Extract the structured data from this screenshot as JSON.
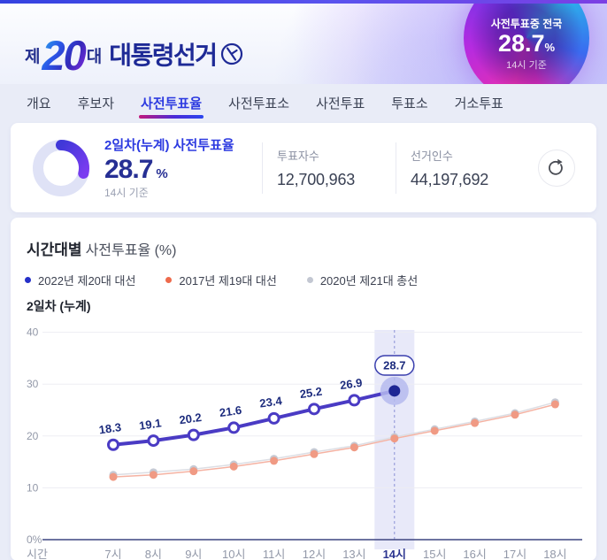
{
  "header": {
    "logo": {
      "prefix": "제",
      "number": "20",
      "suffix": "대",
      "title": "대통령선거",
      "stamp_icon": "ballot-stamp"
    },
    "badge": {
      "label": "사전투표중 전국",
      "value": "28.7",
      "unit": "%",
      "caption": "14시 기준"
    }
  },
  "tabs": {
    "active_index": 2,
    "items": [
      {
        "label": "개요"
      },
      {
        "label": "후보자"
      },
      {
        "label": "사전투표율"
      },
      {
        "label": "사전투표소"
      },
      {
        "label": "사전투표"
      },
      {
        "label": "투표소"
      },
      {
        "label": "거소투표"
      }
    ]
  },
  "summary": {
    "donut_percent": 28.7,
    "title": "2일차(누계) 사전투표율",
    "value": "28.7",
    "unit": "%",
    "caption": "14시 기준",
    "stats": [
      {
        "label": "투표자수",
        "value": "12,700,963"
      },
      {
        "label": "선거인수",
        "value": "44,197,692"
      }
    ],
    "refresh_icon": "refresh"
  },
  "chart": {
    "title_strong": "시간대별",
    "title_rest": "사전투표율 (%)",
    "subtitle": "2일차 (누계)"
  },
  "chart_data": {
    "type": "line",
    "title": "시간대별 사전투표율 (%)",
    "subtitle": "2일차 (누계)",
    "xlabel": "시간",
    "ylabel": "%",
    "ylim": [
      0,
      40
    ],
    "yticks": [
      0,
      10,
      20,
      30,
      40
    ],
    "grid": true,
    "legend_position": "top",
    "categories": [
      "7시",
      "8시",
      "9시",
      "10시",
      "11시",
      "12시",
      "13시",
      "14시",
      "15시",
      "16시",
      "17시",
      "18시"
    ],
    "highlight_category": "14시",
    "series": [
      {
        "name": "2022년 제20대 대선",
        "legend_color": "#2530c8",
        "line_color": "#4a3bc4",
        "marker": "open-circle",
        "labels_shown": true,
        "values": [
          18.3,
          19.1,
          20.2,
          21.6,
          23.4,
          25.2,
          26.9,
          28.7,
          null,
          null,
          null,
          null
        ],
        "callout": {
          "category": "14시",
          "text": "28.7"
        }
      },
      {
        "name": "2017년 제19대 대선",
        "legend_color": "#ee6a4c",
        "line_color": "#f5b2a2",
        "marker_color": "#f09a84",
        "marker": "dot",
        "labels_shown": false,
        "values_estimated": true,
        "values": [
          12.1,
          12.5,
          13.2,
          14.1,
          15.2,
          16.5,
          17.8,
          19.5,
          21.0,
          22.5,
          24.1,
          26.1
        ]
      },
      {
        "name": "2020년 제21대 총선",
        "legend_color": "#c3c7d2",
        "line_color": "#dcdee4",
        "marker_color": "#c6cad4",
        "marker": "dot",
        "labels_shown": false,
        "values_estimated": true,
        "values": [
          12.5,
          13.0,
          13.6,
          14.5,
          15.6,
          16.9,
          18.1,
          19.8,
          21.3,
          22.8,
          24.4,
          26.5
        ]
      }
    ]
  },
  "colors": {
    "accent": "#2c3ae0",
    "navy": "#262f94",
    "donut_track": "#dfe2f6",
    "donut_start": "#4038d8",
    "donut_end": "#7a3cf0",
    "highlight_band": "rgba(110,120,220,0.16)",
    "grid": "#ededf3",
    "axis": "#3d4580",
    "tick": "#9298a8",
    "highlight_tick": "#2c3590",
    "point_label": "#1c2b7d",
    "callout_border": "#3a3fae",
    "focus_halo": "#b5baee",
    "focus_dot": "#1e2694"
  }
}
